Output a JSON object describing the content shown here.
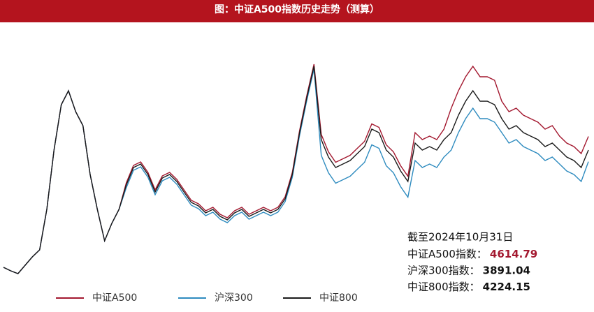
{
  "chart_data": {
    "type": "line",
    "title": "图：中证A500指数历史走势（测算）",
    "ylim": [
      524,
      7724
    ],
    "series": [
      {
        "name": "中证A500",
        "color": "#a3182f",
        "values": [
          864,
          764,
          684,
          924,
          1164,
          1364,
          2524,
          4224,
          5524,
          5924,
          5324,
          4924,
          3524,
          2524,
          1624,
          2124,
          2524,
          3284,
          3784,
          3884,
          3584,
          3084,
          3484,
          3584,
          3384,
          3084,
          2784,
          2684,
          2484,
          2584,
          2384,
          2284,
          2484,
          2584,
          2384,
          2484,
          2584,
          2484,
          2584,
          2884,
          3584,
          4784,
          5784,
          6684,
          4674,
          4174,
          3874,
          3974,
          4074,
          4274,
          4474,
          4974,
          4874,
          4374,
          4174,
          3774,
          3474,
          4724,
          4524,
          4624,
          4524,
          4824,
          5424,
          5924,
          6324,
          6624,
          6324,
          6324,
          6224,
          5624,
          5324,
          5424,
          5224,
          5124,
          5024,
          4824,
          4924,
          4624,
          4424,
          4324,
          4124,
          4614.79
        ]
      },
      {
        "name": "沪深300",
        "color": "#2e8bbf",
        "values": [
          864,
          764,
          684,
          924,
          1164,
          1364,
          2524,
          4224,
          5524,
          5924,
          5324,
          4924,
          3524,
          2524,
          1624,
          2124,
          2524,
          3144,
          3644,
          3744,
          3444,
          2944,
          3344,
          3444,
          3244,
          2944,
          2644,
          2544,
          2344,
          2444,
          2244,
          2144,
          2344,
          2444,
          2244,
          2344,
          2444,
          2344,
          2444,
          2744,
          3444,
          4644,
          5644,
          6544,
          4074,
          3574,
          3274,
          3374,
          3474,
          3674,
          3874,
          4374,
          4274,
          3774,
          3574,
          3174,
          2874,
          3924,
          3724,
          3824,
          3724,
          4024,
          4224,
          4724,
          5124,
          5424,
          5124,
          5124,
          5024,
          4724,
          4424,
          4524,
          4324,
          4224,
          4124,
          3924,
          4024,
          3824,
          3624,
          3524,
          3324,
          3891.04
        ]
      },
      {
        "name": "中证800",
        "color": "#1a1a1a",
        "values": [
          864,
          764,
          684,
          924,
          1164,
          1364,
          2524,
          4224,
          5524,
          5924,
          5324,
          4924,
          3524,
          2524,
          1624,
          2124,
          2524,
          3224,
          3724,
          3824,
          3524,
          3024,
          3424,
          3524,
          3324,
          3024,
          2724,
          2624,
          2424,
          2524,
          2324,
          2224,
          2424,
          2524,
          2324,
          2424,
          2524,
          2424,
          2524,
          2824,
          3524,
          4724,
          5724,
          6624,
          4524,
          4024,
          3724,
          3824,
          3924,
          4124,
          4324,
          4824,
          4724,
          4224,
          4024,
          3624,
          3324,
          4424,
          4224,
          4324,
          4224,
          4524,
          4724,
          5224,
          5624,
          5924,
          5624,
          5624,
          5524,
          5124,
          4824,
          4924,
          4724,
          4624,
          4524,
          4324,
          4424,
          4224,
          4024,
          3924,
          3724,
          4224.15
        ]
      }
    ],
    "annotations": {
      "date": "截至2024年10月31日",
      "items": [
        {
          "label": "中证A500指数：",
          "value": "4614.79"
        },
        {
          "label": "沪深300指数：",
          "value": "3891.04"
        },
        {
          "label": "中证800指数：",
          "value": "4224.15"
        }
      ]
    }
  }
}
